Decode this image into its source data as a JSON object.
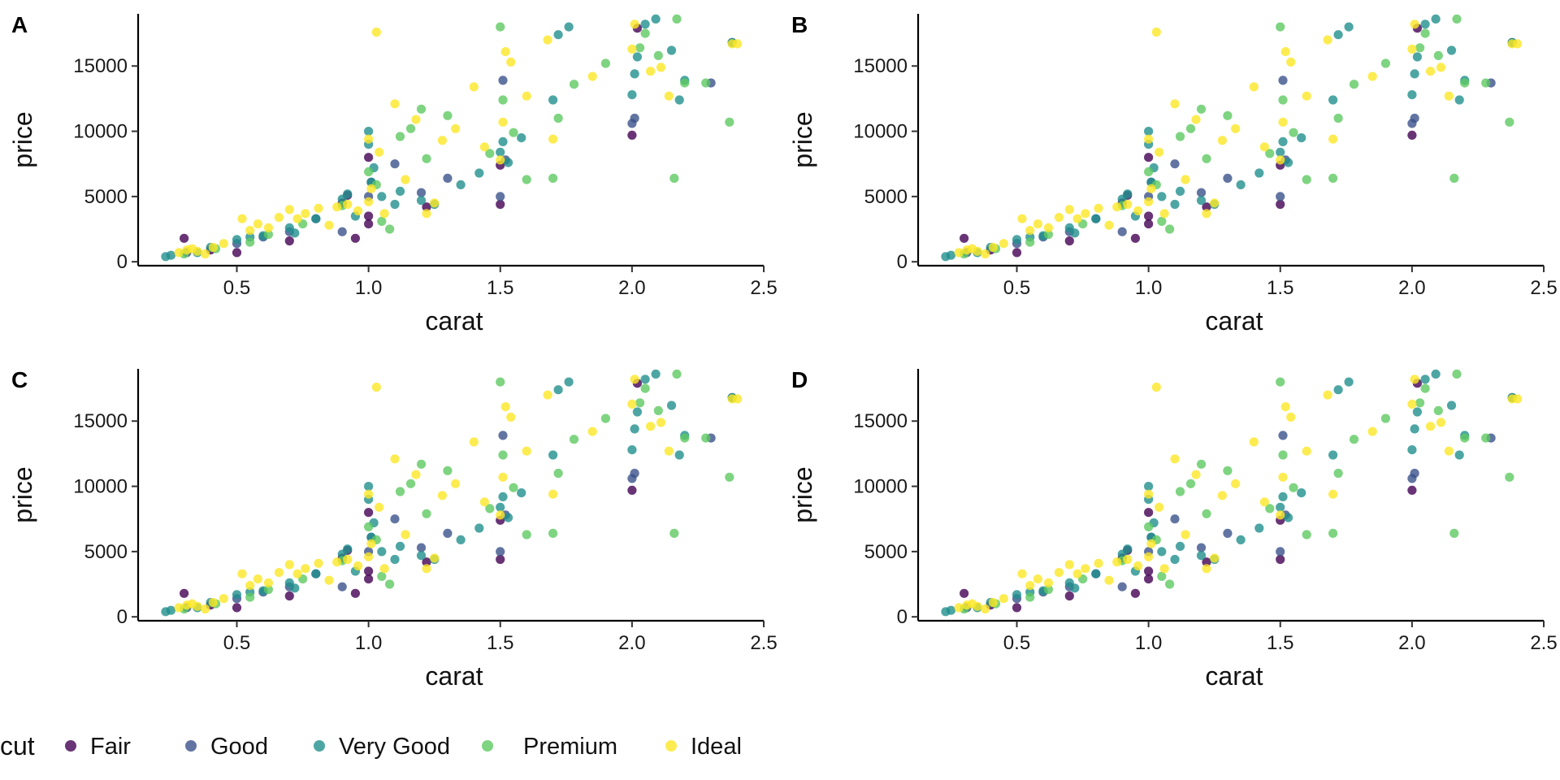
{
  "chart_data": [
    {
      "type": "scatter",
      "tag": "A",
      "title": "",
      "xlabel": "carat",
      "ylabel": "price",
      "xlim": [
        0.15,
        2.5
      ],
      "ylim": [
        -300,
        19000
      ],
      "xticks": [
        "0.5",
        "1.0",
        "1.5",
        "2.0",
        "2.5"
      ],
      "yticks": [
        "0",
        "5000",
        "10000",
        "15000"
      ],
      "grid": false
    },
    {
      "type": "scatter",
      "tag": "B",
      "title": "",
      "xlabel": "carat",
      "ylabel": "price",
      "xlim": [
        0.15,
        2.5
      ],
      "ylim": [
        -300,
        19000
      ],
      "xticks": [
        "0.5",
        "1.0",
        "1.5",
        "2.0",
        "2.5"
      ],
      "yticks": [
        "0",
        "5000",
        "10000",
        "15000"
      ],
      "grid": false
    },
    {
      "type": "scatter",
      "tag": "C",
      "title": "",
      "xlabel": "carat",
      "ylabel": "price",
      "xlim": [
        0.15,
        2.5
      ],
      "ylim": [
        -300,
        19000
      ],
      "xticks": [
        "0.5",
        "1.0",
        "1.5",
        "2.0",
        "2.5"
      ],
      "yticks": [
        "0",
        "5000",
        "10000",
        "15000"
      ],
      "grid": false
    },
    {
      "type": "scatter",
      "tag": "D",
      "title": "",
      "xlabel": "carat",
      "ylabel": "price",
      "xlim": [
        0.15,
        2.5
      ],
      "ylim": [
        -300,
        19000
      ],
      "xticks": [
        "0.5",
        "1.0",
        "1.5",
        "2.0",
        "2.5"
      ],
      "yticks": [
        "0",
        "5000",
        "10000",
        "15000"
      ],
      "grid": false
    }
  ],
  "series": [
    {
      "name": "Fair",
      "color": "#440154",
      "points": [
        [
          0.3,
          1800
        ],
        [
          0.9,
          4500
        ],
        [
          0.92,
          5100
        ],
        [
          0.95,
          1800
        ],
        [
          1.0,
          2900
        ],
        [
          1.0,
          3500
        ],
        [
          1.0,
          8000
        ],
        [
          1.22,
          4200
        ],
        [
          1.5,
          4400
        ],
        [
          1.5,
          7400
        ],
        [
          2.0,
          9700
        ],
        [
          2.02,
          17900
        ],
        [
          0.4,
          900
        ],
        [
          0.7,
          1600
        ],
        [
          0.5,
          700
        ]
      ]
    },
    {
      "name": "Good",
      "color": "#3b528b",
      "points": [
        [
          0.31,
          700
        ],
        [
          0.5,
          1400
        ],
        [
          0.7,
          2300
        ],
        [
          0.8,
          3300
        ],
        [
          0.9,
          2300
        ],
        [
          1.0,
          5000
        ],
        [
          1.01,
          6100
        ],
        [
          1.1,
          7500
        ],
        [
          1.3,
          6400
        ],
        [
          1.5,
          5000
        ],
        [
          1.51,
          13900
        ],
        [
          1.52,
          7800
        ],
        [
          2.0,
          10600
        ],
        [
          2.01,
          11000
        ],
        [
          2.3,
          13700
        ],
        [
          2.38,
          16800
        ],
        [
          0.6,
          1900
        ],
        [
          1.2,
          5300
        ]
      ]
    },
    {
      "name": "Very Good",
      "color": "#21908d",
      "points": [
        [
          0.23,
          400
        ],
        [
          0.25,
          500
        ],
        [
          0.35,
          700
        ],
        [
          0.4,
          1100
        ],
        [
          0.5,
          1700
        ],
        [
          0.55,
          1900
        ],
        [
          0.6,
          2000
        ],
        [
          0.7,
          2600
        ],
        [
          0.72,
          2200
        ],
        [
          0.8,
          3300
        ],
        [
          0.9,
          4800
        ],
        [
          0.92,
          5200
        ],
        [
          0.95,
          3500
        ],
        [
          1.0,
          9000
        ],
        [
          1.0,
          10000
        ],
        [
          1.01,
          6100
        ],
        [
          1.02,
          7200
        ],
        [
          1.05,
          5000
        ],
        [
          1.1,
          4400
        ],
        [
          1.12,
          5400
        ],
        [
          1.2,
          4700
        ],
        [
          1.25,
          4400
        ],
        [
          1.35,
          5900
        ],
        [
          1.42,
          6800
        ],
        [
          1.5,
          8400
        ],
        [
          1.51,
          9200
        ],
        [
          1.53,
          7600
        ],
        [
          1.58,
          9500
        ],
        [
          1.7,
          12400
        ],
        [
          1.72,
          17400
        ],
        [
          1.76,
          18000
        ],
        [
          2.0,
          12800
        ],
        [
          2.01,
          14400
        ],
        [
          2.02,
          15700
        ],
        [
          2.05,
          18200
        ],
        [
          2.09,
          18600
        ],
        [
          2.15,
          16200
        ],
        [
          2.18,
          12400
        ],
        [
          2.2,
          13900
        ],
        [
          2.38,
          16800
        ]
      ]
    },
    {
      "name": "Premium",
      "color": "#5ec962",
      "points": [
        [
          0.3,
          600
        ],
        [
          0.42,
          1000
        ],
        [
          0.55,
          1500
        ],
        [
          0.62,
          2100
        ],
        [
          0.75,
          2900
        ],
        [
          0.9,
          4300
        ],
        [
          1.0,
          6900
        ],
        [
          1.03,
          5900
        ],
        [
          1.05,
          3100
        ],
        [
          1.08,
          2500
        ],
        [
          1.12,
          9600
        ],
        [
          1.16,
          10200
        ],
        [
          1.2,
          11700
        ],
        [
          1.22,
          7900
        ],
        [
          1.3,
          11200
        ],
        [
          1.46,
          8300
        ],
        [
          1.5,
          18000
        ],
        [
          1.51,
          12400
        ],
        [
          1.55,
          9900
        ],
        [
          1.6,
          6300
        ],
        [
          1.7,
          6400
        ],
        [
          1.72,
          11000
        ],
        [
          1.78,
          13600
        ],
        [
          1.9,
          15200
        ],
        [
          2.03,
          16400
        ],
        [
          2.05,
          17500
        ],
        [
          2.1,
          15800
        ],
        [
          2.16,
          6400
        ],
        [
          2.17,
          18600
        ],
        [
          2.2,
          13700
        ],
        [
          2.28,
          13700
        ],
        [
          2.37,
          10700
        ]
      ]
    },
    {
      "name": "Ideal",
      "color": "#fde725",
      "points": [
        [
          0.28,
          700
        ],
        [
          0.31,
          900
        ],
        [
          0.33,
          1000
        ],
        [
          0.35,
          800
        ],
        [
          0.38,
          600
        ],
        [
          0.41,
          1100
        ],
        [
          0.45,
          1400
        ],
        [
          0.52,
          3300
        ],
        [
          0.55,
          2400
        ],
        [
          0.58,
          2900
        ],
        [
          0.62,
          2600
        ],
        [
          0.66,
          3400
        ],
        [
          0.7,
          4000
        ],
        [
          0.73,
          3300
        ],
        [
          0.76,
          3700
        ],
        [
          0.81,
          4100
        ],
        [
          0.88,
          4200
        ],
        [
          0.92,
          4400
        ],
        [
          0.96,
          3900
        ],
        [
          1.0,
          4600
        ],
        [
          1.0,
          9400
        ],
        [
          1.01,
          5600
        ],
        [
          1.03,
          17600
        ],
        [
          1.04,
          8400
        ],
        [
          1.06,
          3700
        ],
        [
          1.1,
          12100
        ],
        [
          1.14,
          6300
        ],
        [
          1.18,
          10900
        ],
        [
          1.22,
          3700
        ],
        [
          1.28,
          9300
        ],
        [
          1.33,
          10200
        ],
        [
          1.4,
          13400
        ],
        [
          1.44,
          8800
        ],
        [
          1.5,
          7800
        ],
        [
          1.51,
          10700
        ],
        [
          1.52,
          16100
        ],
        [
          1.54,
          15300
        ],
        [
          1.6,
          12700
        ],
        [
          1.68,
          17000
        ],
        [
          1.7,
          9400
        ],
        [
          1.85,
          14200
        ],
        [
          2.0,
          16300
        ],
        [
          2.01,
          18200
        ],
        [
          2.07,
          14600
        ],
        [
          2.11,
          14900
        ],
        [
          2.14,
          12700
        ],
        [
          2.38,
          16700
        ],
        [
          2.4,
          16700
        ],
        [
          1.25,
          4500
        ],
        [
          0.85,
          2800
        ]
      ]
    }
  ],
  "legend": {
    "title": "cut",
    "items": [
      "Fair",
      "Good",
      "Very Good",
      "Premium",
      "Ideal"
    ]
  }
}
